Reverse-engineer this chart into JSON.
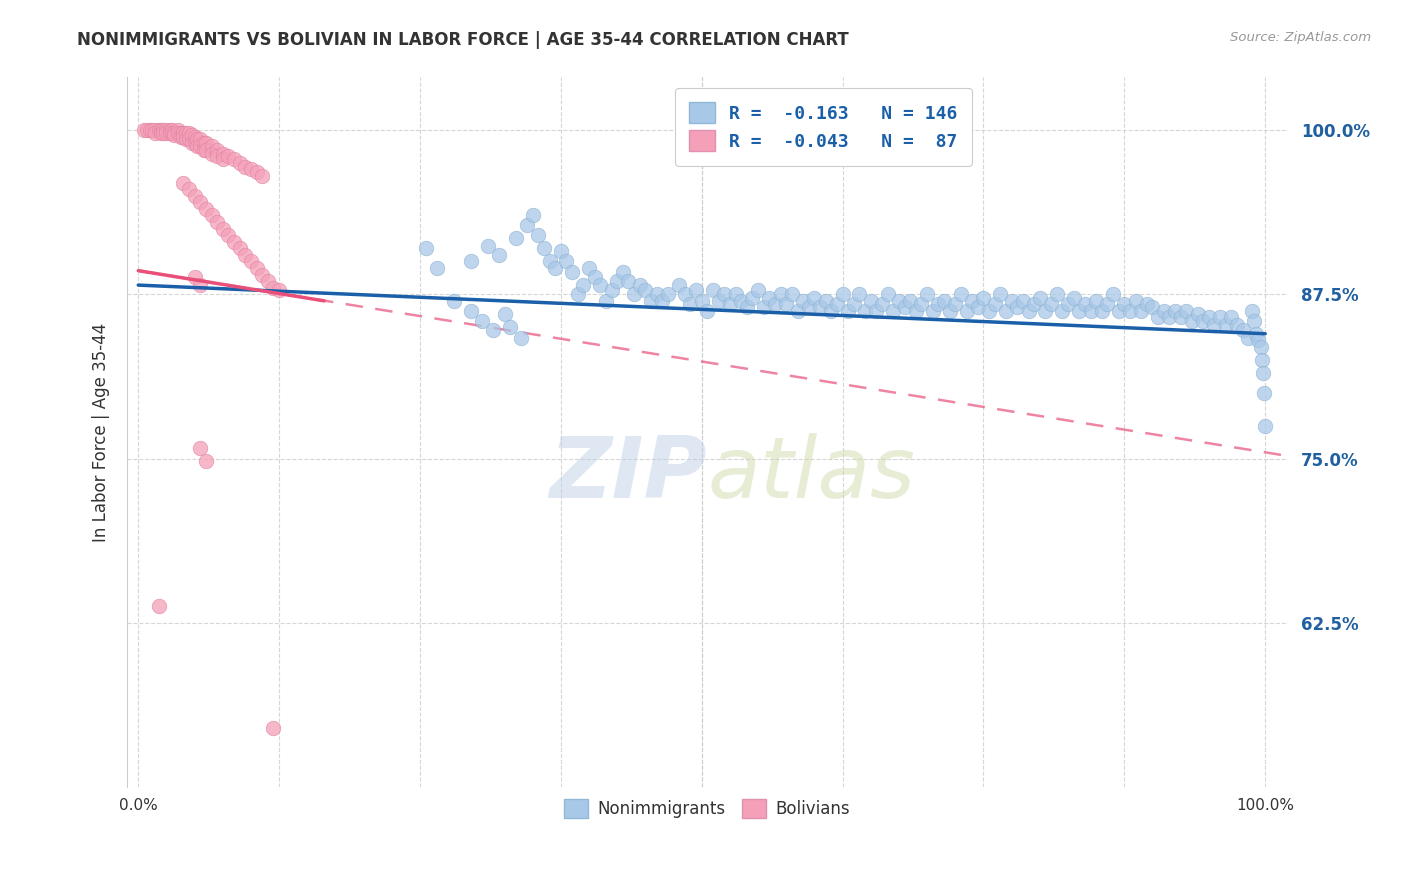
{
  "title": "NONIMMIGRANTS VS BOLIVIAN IN LABOR FORCE | AGE 35-44 CORRELATION CHART",
  "source": "Source: ZipAtlas.com",
  "ylabel": "In Labor Force | Age 35-44",
  "yticks": [
    0.625,
    0.75,
    0.875,
    1.0
  ],
  "ytick_labels": [
    "62.5%",
    "75.0%",
    "87.5%",
    "100.0%"
  ],
  "watermark_zip": "ZIP",
  "watermark_atlas": "atlas",
  "legend_blue_r": "-0.163",
  "legend_blue_n": "146",
  "legend_pink_r": "-0.043",
  "legend_pink_n": "87",
  "blue_color": "#a8c8e8",
  "pink_color": "#f4a0b8",
  "trend_blue_color": "#1a5fa8",
  "trend_pink_color": "#e8507a",
  "blue_scatter": [
    [
      0.255,
      0.91
    ],
    [
      0.265,
      0.895
    ],
    [
      0.28,
      0.87
    ],
    [
      0.295,
      0.9
    ],
    [
      0.31,
      0.912
    ],
    [
      0.32,
      0.905
    ],
    [
      0.335,
      0.918
    ],
    [
      0.345,
      0.928
    ],
    [
      0.35,
      0.935
    ],
    [
      0.355,
      0.92
    ],
    [
      0.36,
      0.91
    ],
    [
      0.365,
      0.9
    ],
    [
      0.37,
      0.895
    ],
    [
      0.375,
      0.908
    ],
    [
      0.38,
      0.9
    ],
    [
      0.385,
      0.892
    ],
    [
      0.39,
      0.875
    ],
    [
      0.395,
      0.882
    ],
    [
      0.4,
      0.895
    ],
    [
      0.405,
      0.888
    ],
    [
      0.41,
      0.882
    ],
    [
      0.415,
      0.87
    ],
    [
      0.42,
      0.878
    ],
    [
      0.425,
      0.885
    ],
    [
      0.43,
      0.892
    ],
    [
      0.435,
      0.885
    ],
    [
      0.44,
      0.875
    ],
    [
      0.445,
      0.882
    ],
    [
      0.45,
      0.878
    ],
    [
      0.455,
      0.87
    ],
    [
      0.46,
      0.875
    ],
    [
      0.465,
      0.87
    ],
    [
      0.47,
      0.875
    ],
    [
      0.48,
      0.882
    ],
    [
      0.485,
      0.875
    ],
    [
      0.49,
      0.868
    ],
    [
      0.495,
      0.878
    ],
    [
      0.5,
      0.87
    ],
    [
      0.505,
      0.862
    ],
    [
      0.51,
      0.878
    ],
    [
      0.515,
      0.87
    ],
    [
      0.52,
      0.875
    ],
    [
      0.525,
      0.868
    ],
    [
      0.53,
      0.875
    ],
    [
      0.535,
      0.87
    ],
    [
      0.54,
      0.865
    ],
    [
      0.545,
      0.872
    ],
    [
      0.55,
      0.878
    ],
    [
      0.555,
      0.865
    ],
    [
      0.56,
      0.872
    ],
    [
      0.565,
      0.868
    ],
    [
      0.57,
      0.875
    ],
    [
      0.575,
      0.868
    ],
    [
      0.58,
      0.875
    ],
    [
      0.585,
      0.862
    ],
    [
      0.59,
      0.87
    ],
    [
      0.595,
      0.865
    ],
    [
      0.6,
      0.872
    ],
    [
      0.605,
      0.865
    ],
    [
      0.61,
      0.87
    ],
    [
      0.615,
      0.862
    ],
    [
      0.62,
      0.868
    ],
    [
      0.625,
      0.875
    ],
    [
      0.63,
      0.862
    ],
    [
      0.635,
      0.868
    ],
    [
      0.64,
      0.875
    ],
    [
      0.645,
      0.862
    ],
    [
      0.65,
      0.87
    ],
    [
      0.655,
      0.862
    ],
    [
      0.66,
      0.868
    ],
    [
      0.665,
      0.875
    ],
    [
      0.67,
      0.862
    ],
    [
      0.675,
      0.87
    ],
    [
      0.68,
      0.865
    ],
    [
      0.685,
      0.87
    ],
    [
      0.69,
      0.862
    ],
    [
      0.695,
      0.868
    ],
    [
      0.7,
      0.875
    ],
    [
      0.705,
      0.862
    ],
    [
      0.71,
      0.868
    ],
    [
      0.715,
      0.87
    ],
    [
      0.72,
      0.862
    ],
    [
      0.725,
      0.868
    ],
    [
      0.73,
      0.875
    ],
    [
      0.735,
      0.862
    ],
    [
      0.74,
      0.87
    ],
    [
      0.745,
      0.865
    ],
    [
      0.75,
      0.872
    ],
    [
      0.755,
      0.862
    ],
    [
      0.76,
      0.868
    ],
    [
      0.765,
      0.875
    ],
    [
      0.77,
      0.862
    ],
    [
      0.775,
      0.87
    ],
    [
      0.78,
      0.865
    ],
    [
      0.785,
      0.87
    ],
    [
      0.79,
      0.862
    ],
    [
      0.795,
      0.868
    ],
    [
      0.8,
      0.872
    ],
    [
      0.805,
      0.862
    ],
    [
      0.81,
      0.868
    ],
    [
      0.815,
      0.875
    ],
    [
      0.82,
      0.862
    ],
    [
      0.825,
      0.868
    ],
    [
      0.83,
      0.872
    ],
    [
      0.835,
      0.862
    ],
    [
      0.84,
      0.868
    ],
    [
      0.845,
      0.862
    ],
    [
      0.85,
      0.87
    ],
    [
      0.855,
      0.862
    ],
    [
      0.86,
      0.868
    ],
    [
      0.865,
      0.875
    ],
    [
      0.87,
      0.862
    ],
    [
      0.875,
      0.868
    ],
    [
      0.88,
      0.862
    ],
    [
      0.885,
      0.87
    ],
    [
      0.89,
      0.862
    ],
    [
      0.895,
      0.868
    ],
    [
      0.9,
      0.865
    ],
    [
      0.905,
      0.858
    ],
    [
      0.91,
      0.862
    ],
    [
      0.915,
      0.858
    ],
    [
      0.92,
      0.862
    ],
    [
      0.925,
      0.858
    ],
    [
      0.93,
      0.862
    ],
    [
      0.935,
      0.855
    ],
    [
      0.94,
      0.86
    ],
    [
      0.945,
      0.855
    ],
    [
      0.95,
      0.858
    ],
    [
      0.955,
      0.852
    ],
    [
      0.96,
      0.858
    ],
    [
      0.965,
      0.852
    ],
    [
      0.97,
      0.858
    ],
    [
      0.975,
      0.852
    ],
    [
      0.98,
      0.848
    ],
    [
      0.985,
      0.842
    ],
    [
      0.988,
      0.862
    ],
    [
      0.99,
      0.855
    ],
    [
      0.992,
      0.845
    ],
    [
      0.994,
      0.84
    ],
    [
      0.996,
      0.835
    ],
    [
      0.997,
      0.825
    ],
    [
      0.998,
      0.815
    ],
    [
      0.999,
      0.8
    ],
    [
      1.0,
      0.775
    ],
    [
      0.295,
      0.862
    ],
    [
      0.305,
      0.855
    ],
    [
      0.315,
      0.848
    ],
    [
      0.325,
      0.86
    ],
    [
      0.33,
      0.85
    ],
    [
      0.34,
      0.842
    ]
  ],
  "pink_scatter": [
    [
      0.005,
      1.0
    ],
    [
      0.008,
      1.0
    ],
    [
      0.01,
      1.0
    ],
    [
      0.012,
      1.0
    ],
    [
      0.015,
      1.0
    ],
    [
      0.015,
      0.998
    ],
    [
      0.018,
      1.0
    ],
    [
      0.02,
      1.0
    ],
    [
      0.02,
      0.998
    ],
    [
      0.022,
      1.0
    ],
    [
      0.022,
      0.998
    ],
    [
      0.025,
      1.0
    ],
    [
      0.025,
      0.998
    ],
    [
      0.028,
      1.0
    ],
    [
      0.028,
      0.998
    ],
    [
      0.03,
      1.0
    ],
    [
      0.03,
      0.998
    ],
    [
      0.032,
      0.998
    ],
    [
      0.032,
      0.996
    ],
    [
      0.035,
      1.0
    ],
    [
      0.035,
      0.998
    ],
    [
      0.038,
      0.998
    ],
    [
      0.038,
      0.995
    ],
    [
      0.04,
      0.998
    ],
    [
      0.04,
      0.995
    ],
    [
      0.042,
      0.998
    ],
    [
      0.042,
      0.993
    ],
    [
      0.045,
      0.998
    ],
    [
      0.045,
      0.993
    ],
    [
      0.048,
      0.996
    ],
    [
      0.048,
      0.99
    ],
    [
      0.05,
      0.995
    ],
    [
      0.05,
      0.99
    ],
    [
      0.052,
      0.993
    ],
    [
      0.052,
      0.988
    ],
    [
      0.055,
      0.993
    ],
    [
      0.055,
      0.988
    ],
    [
      0.058,
      0.99
    ],
    [
      0.058,
      0.985
    ],
    [
      0.06,
      0.99
    ],
    [
      0.06,
      0.985
    ],
    [
      0.065,
      0.988
    ],
    [
      0.065,
      0.982
    ],
    [
      0.07,
      0.985
    ],
    [
      0.07,
      0.98
    ],
    [
      0.075,
      0.982
    ],
    [
      0.075,
      0.978
    ],
    [
      0.08,
      0.98
    ],
    [
      0.085,
      0.978
    ],
    [
      0.09,
      0.975
    ],
    [
      0.095,
      0.972
    ],
    [
      0.1,
      0.97
    ],
    [
      0.105,
      0.968
    ],
    [
      0.11,
      0.965
    ],
    [
      0.05,
      0.888
    ],
    [
      0.055,
      0.882
    ],
    [
      0.04,
      0.96
    ],
    [
      0.045,
      0.955
    ],
    [
      0.05,
      0.95
    ],
    [
      0.055,
      0.945
    ],
    [
      0.06,
      0.94
    ],
    [
      0.065,
      0.935
    ],
    [
      0.07,
      0.93
    ],
    [
      0.075,
      0.925
    ],
    [
      0.08,
      0.92
    ],
    [
      0.085,
      0.915
    ],
    [
      0.09,
      0.91
    ],
    [
      0.095,
      0.905
    ],
    [
      0.1,
      0.9
    ],
    [
      0.105,
      0.895
    ],
    [
      0.11,
      0.89
    ],
    [
      0.115,
      0.885
    ],
    [
      0.12,
      0.88
    ],
    [
      0.125,
      0.878
    ],
    [
      0.055,
      0.758
    ],
    [
      0.06,
      0.748
    ],
    [
      0.018,
      0.638
    ],
    [
      0.12,
      0.545
    ]
  ],
  "xlim": [
    -0.01,
    1.02
  ],
  "ylim": [
    0.5,
    1.04
  ],
  "blue_trend": [
    0.0,
    0.882,
    1.0,
    0.845
  ],
  "pink_trend_solid": [
    0.0,
    0.893,
    0.165,
    0.87
  ],
  "pink_trend_dash": [
    0.0,
    0.893,
    1.02,
    0.752
  ]
}
